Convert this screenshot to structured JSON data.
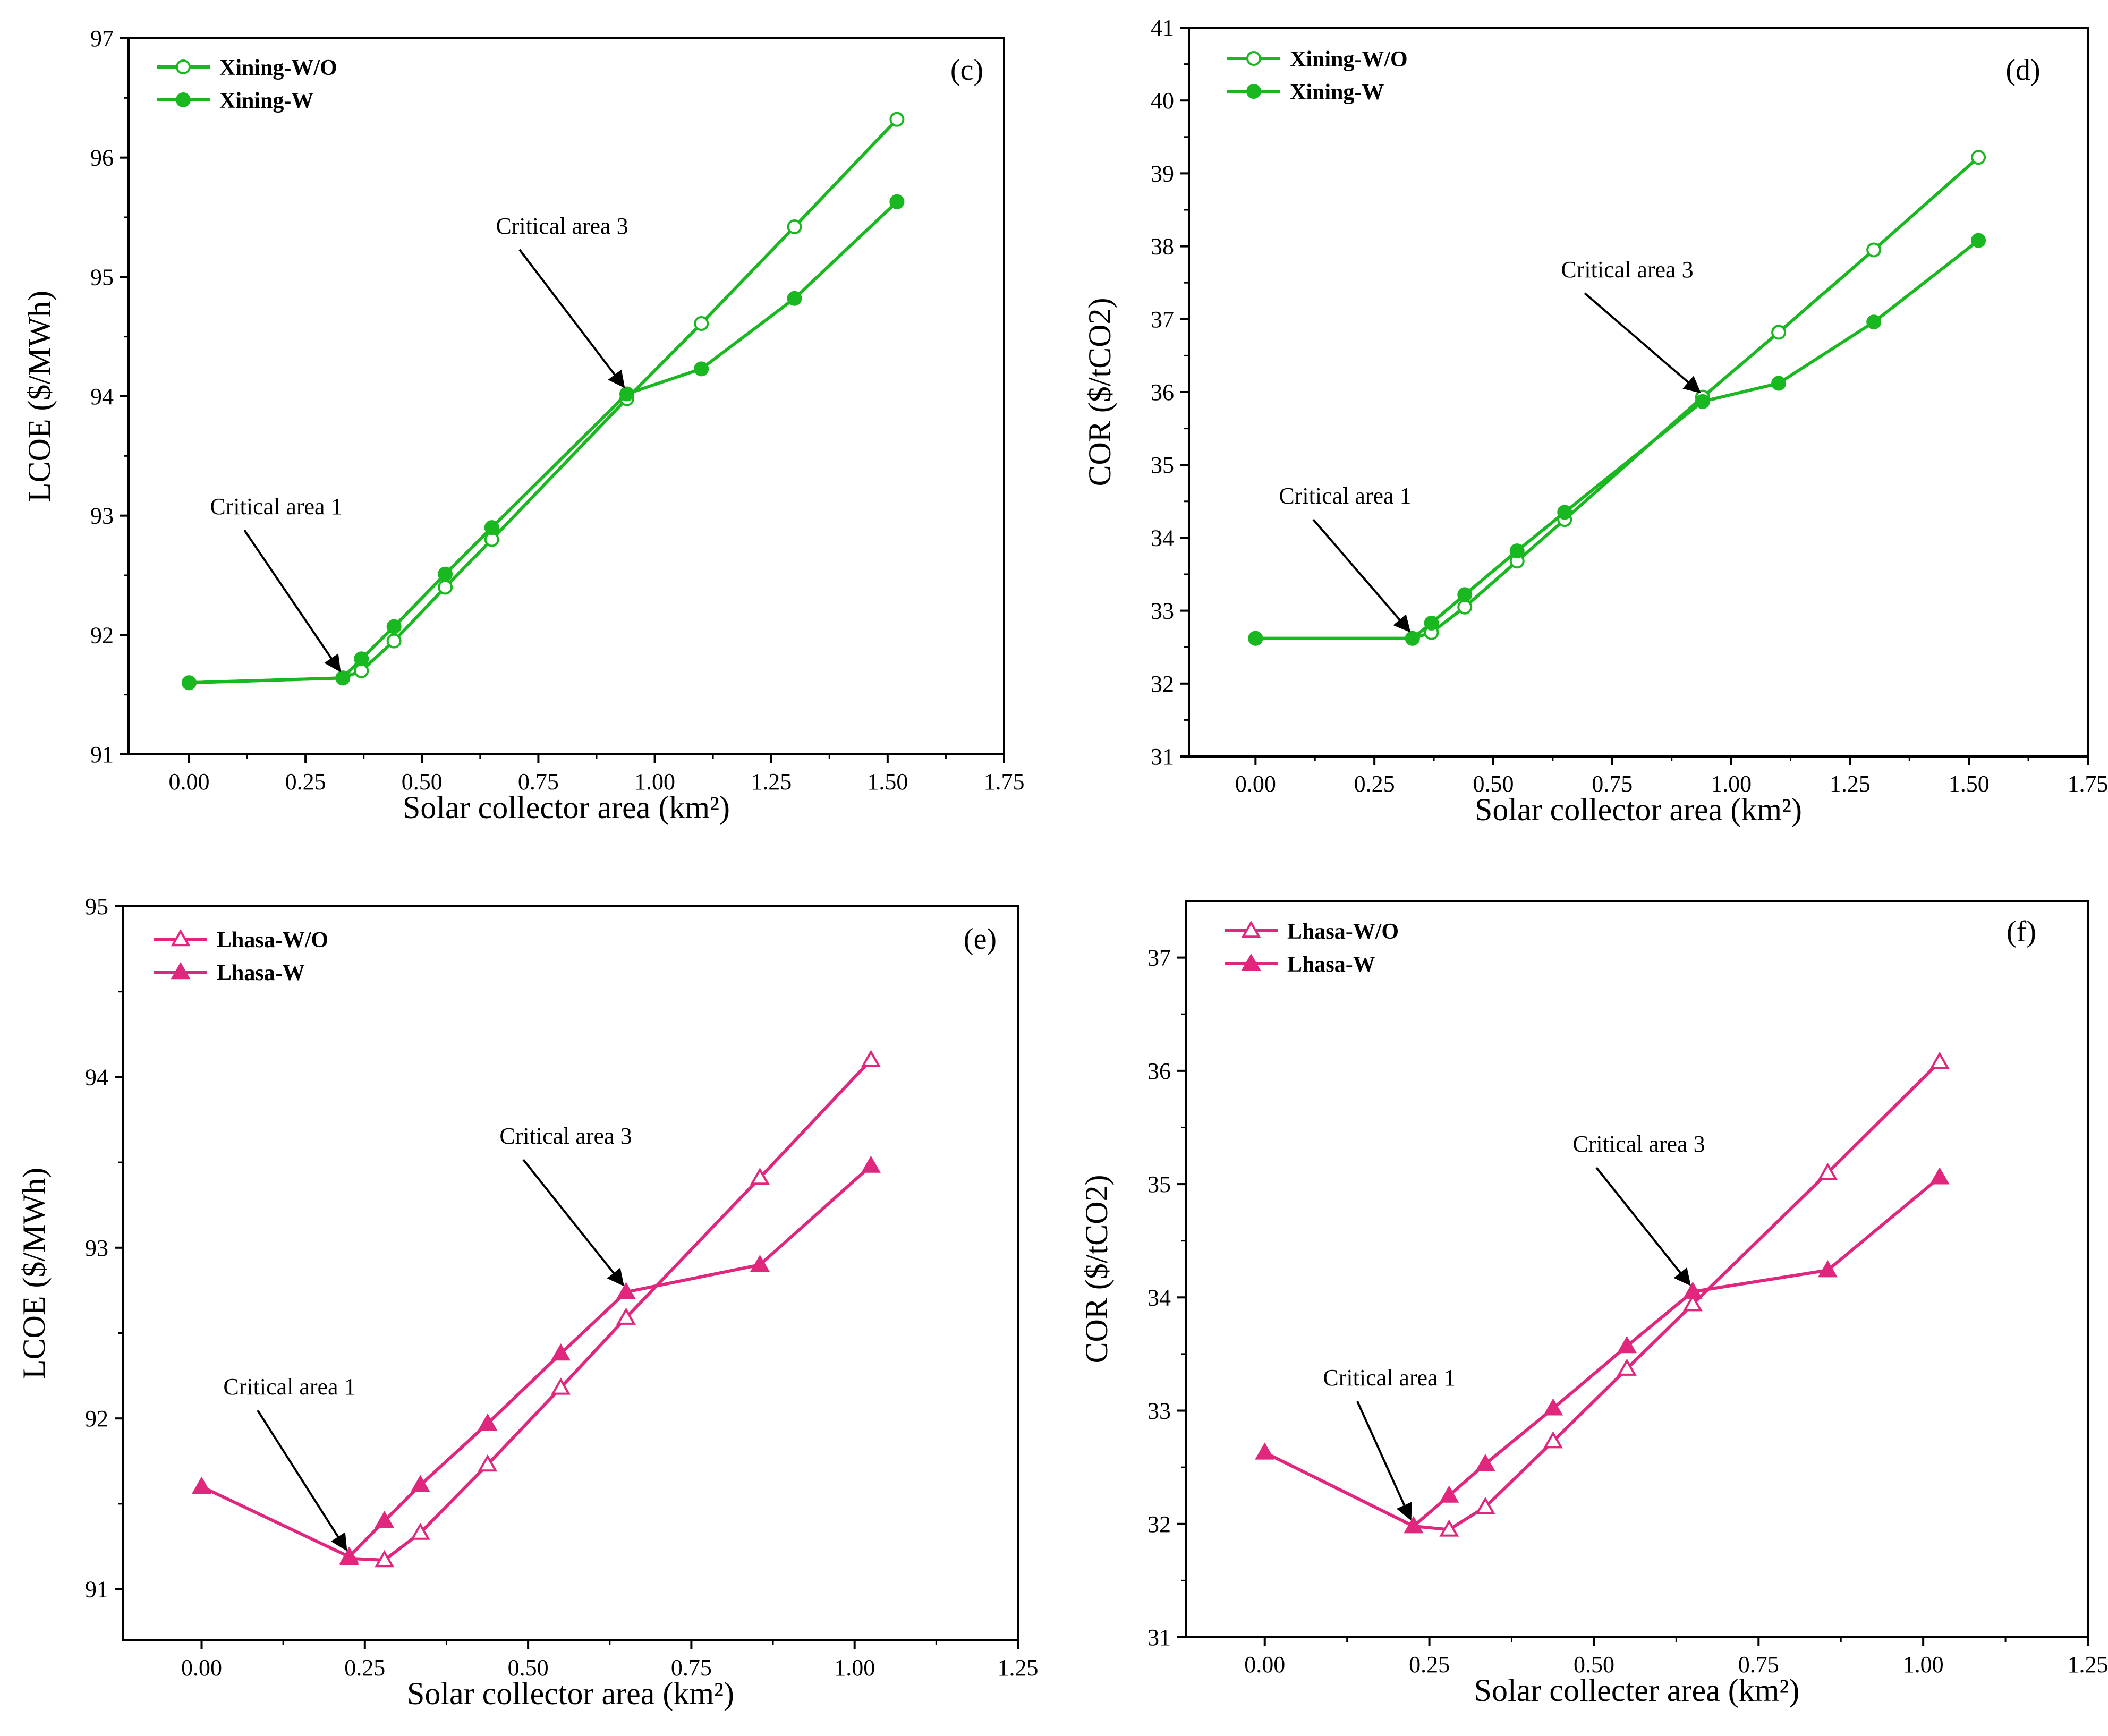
{
  "chart_data": [
    {
      "id": "c",
      "type": "line",
      "panel_label": "(c)",
      "xlabel": "Solar collector area (km²)",
      "ylabel": "LCOE ($/MWh)",
      "xlim": [
        -0.13,
        1.75
      ],
      "ylim": [
        91,
        97
      ],
      "xticks": [
        "0.00",
        "0.25",
        "0.50",
        "0.75",
        "1.00",
        "1.25",
        "1.50",
        "1.75"
      ],
      "yticks": [
        "91",
        "92",
        "93",
        "94",
        "95",
        "96",
        "97"
      ],
      "color": "#1ab820",
      "marker": "circle",
      "legend_position": "top-left",
      "series": [
        {
          "name": "Xining-W/O",
          "filled": false,
          "x": [
            0.0,
            0.33,
            0.37,
            0.44,
            0.55,
            0.65,
            0.94,
            1.1,
            1.3,
            1.52
          ],
          "y": [
            91.6,
            91.64,
            91.7,
            91.95,
            92.4,
            92.8,
            93.98,
            94.61,
            95.42,
            96.32
          ]
        },
        {
          "name": "Xining-W",
          "filled": true,
          "x": [
            0.0,
            0.33,
            0.37,
            0.44,
            0.55,
            0.65,
            0.94,
            1.1,
            1.3,
            1.52
          ],
          "y": [
            91.6,
            91.64,
            91.8,
            92.07,
            92.51,
            92.9,
            94.02,
            94.23,
            94.82,
            95.63
          ]
        }
      ],
      "annotations": [
        {
          "text": "Critical area 1",
          "x": 0.33,
          "y": 91.64
        },
        {
          "text": "Critical area 3",
          "x": 0.94,
          "y": 94.02
        }
      ]
    },
    {
      "id": "d",
      "type": "line",
      "panel_label": "(d)",
      "xlabel": "Solar collector area (km²)",
      "ylabel": "COR ($/tCO2)",
      "xlim": [
        -0.14,
        1.75
      ],
      "ylim": [
        31,
        41
      ],
      "xticks": [
        "0.00",
        "0.25",
        "0.50",
        "0.75",
        "1.00",
        "1.25",
        "1.50",
        "1.75"
      ],
      "yticks": [
        "31",
        "32",
        "33",
        "34",
        "35",
        "36",
        "37",
        "38",
        "39",
        "40",
        "41"
      ],
      "color": "#1ab820",
      "marker": "circle",
      "legend_position": "top-left",
      "series": [
        {
          "name": "Xining-W/O",
          "filled": false,
          "x": [
            0.0,
            0.33,
            0.37,
            0.44,
            0.55,
            0.65,
            0.94,
            1.1,
            1.3,
            1.52
          ],
          "y": [
            32.62,
            32.62,
            32.7,
            33.05,
            33.68,
            34.25,
            35.93,
            36.82,
            37.95,
            39.22
          ]
        },
        {
          "name": "Xining-W",
          "filled": true,
          "x": [
            0.0,
            0.33,
            0.37,
            0.44,
            0.55,
            0.65,
            0.94,
            1.1,
            1.3,
            1.52
          ],
          "y": [
            32.62,
            32.62,
            32.83,
            33.22,
            33.82,
            34.35,
            35.87,
            36.12,
            36.96,
            38.08
          ]
        }
      ],
      "annotations": [
        {
          "text": "Critical area 1",
          "x": 0.33,
          "y": 32.62
        },
        {
          "text": "Critical area 3",
          "x": 0.94,
          "y": 35.9
        }
      ]
    },
    {
      "id": "e",
      "type": "line",
      "panel_label": "(e)",
      "xlabel": "Solar collector area (km²)",
      "ylabel": "LCOE ($/MWh)",
      "xlim": [
        -0.12,
        1.25
      ],
      "ylim": [
        90.7,
        95
      ],
      "xticks": [
        "0.00",
        "0.25",
        "0.50",
        "0.75",
        "1.00",
        "1.25"
      ],
      "yticks": [
        "91",
        "92",
        "93",
        "94",
        "95"
      ],
      "color": "#e0267d",
      "marker": "triangle",
      "legend_position": "top-left",
      "series": [
        {
          "name": "Lhasa-W/O",
          "filled": false,
          "x": [
            0.226,
            0.28,
            0.335,
            0.438,
            0.55,
            0.65,
            0.855,
            1.025
          ],
          "y": [
            91.18,
            91.17,
            91.33,
            91.73,
            92.18,
            92.59,
            93.41,
            94.1
          ]
        },
        {
          "name": "Lhasa-W",
          "filled": true,
          "x": [
            0.0,
            0.226,
            0.28,
            0.335,
            0.438,
            0.55,
            0.65,
            0.855,
            1.025
          ],
          "y": [
            91.6,
            91.19,
            91.4,
            91.61,
            91.97,
            92.38,
            92.74,
            92.9,
            93.48
          ]
        }
      ],
      "annotations": [
        {
          "text": "Critical area 1",
          "x": 0.226,
          "y": 91.19
        },
        {
          "text": "Critical area 3",
          "x": 0.65,
          "y": 92.74
        }
      ]
    },
    {
      "id": "f",
      "type": "line",
      "panel_label": "(f)",
      "xlabel": "Solar collecter area (km²)",
      "ylabel": "COR ($/tCO2)",
      "xlim": [
        -0.12,
        1.25
      ],
      "ylim": [
        31,
        37.5
      ],
      "xticks": [
        "0.00",
        "0.25",
        "0.50",
        "0.75",
        "1.00",
        "1.25"
      ],
      "yticks": [
        "31",
        "32",
        "33",
        "34",
        "35",
        "36",
        "37"
      ],
      "color": "#e0267d",
      "marker": "triangle",
      "legend_position": "top-left",
      "series": [
        {
          "name": "Lhasa-W/O",
          "filled": false,
          "x": [
            0.226,
            0.28,
            0.335,
            0.438,
            0.55,
            0.65,
            0.855,
            1.025
          ],
          "y": [
            31.98,
            31.95,
            32.15,
            32.73,
            33.37,
            33.94,
            35.1,
            36.08
          ]
        },
        {
          "name": "Lhasa-W",
          "filled": true,
          "x": [
            0.0,
            0.226,
            0.28,
            0.335,
            0.438,
            0.55,
            0.65,
            0.855,
            1.025
          ],
          "y": [
            32.63,
            31.98,
            32.25,
            32.53,
            33.02,
            33.57,
            34.05,
            34.24,
            35.06
          ]
        }
      ],
      "annotations": [
        {
          "text": "Critical area 1",
          "x": 0.226,
          "y": 31.98
        },
        {
          "text": "Critical area 3",
          "x": 0.65,
          "y": 34.05
        }
      ]
    }
  ]
}
